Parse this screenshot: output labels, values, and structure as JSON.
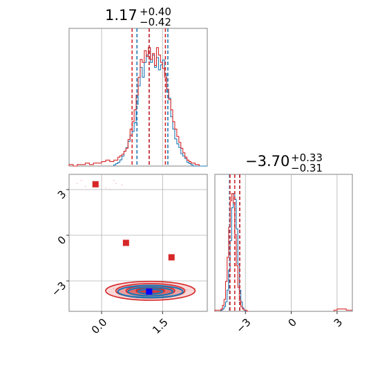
{
  "chart_data": [
    {
      "panel": "marginal-param1",
      "type": "histogram",
      "title": {
        "value": "1.17",
        "plus": "+0.40",
        "minus": "−0.42"
      },
      "xlim": [
        -0.8,
        2.6
      ],
      "grid": true,
      "series": [
        {
          "name": "",
          "color": "#1f77b4",
          "bins": [
            0.3,
            0.35,
            0.4,
            0.45,
            0.5,
            0.55,
            0.6,
            0.65,
            0.7,
            0.75,
            0.8,
            0.85,
            0.9,
            0.95,
            1.0,
            1.05,
            1.1,
            1.15,
            1.2,
            1.25,
            1.3,
            1.35,
            1.4,
            1.45,
            1.5,
            1.55,
            1.6,
            1.65,
            1.7,
            1.75,
            1.8,
            1.85,
            1.9,
            1.95,
            2.0,
            2.05,
            2.1,
            2.15,
            2.2,
            2.25,
            2.3,
            2.35,
            2.4,
            2.45,
            2.5,
            2.55,
            2.6
          ],
          "counts": [
            1,
            2,
            3,
            5,
            8,
            12,
            15,
            20,
            25,
            28,
            35,
            50,
            65,
            80,
            72,
            84,
            90,
            96,
            84,
            90,
            80,
            88,
            78,
            82,
            86,
            75,
            60,
            55,
            40,
            30,
            22,
            18,
            15,
            10,
            8,
            6,
            3,
            2,
            1,
            0,
            0,
            0,
            0,
            0,
            0,
            0
          ]
        },
        {
          "name": "",
          "color": "#d62728",
          "bins": [
            -0.8,
            -0.7,
            -0.6,
            -0.5,
            -0.4,
            -0.3,
            -0.2,
            -0.1,
            0.0,
            0.1,
            0.2,
            0.3,
            0.4,
            0.45,
            0.5,
            0.55,
            0.6,
            0.65,
            0.7,
            0.75,
            0.8,
            0.85,
            0.9,
            0.95,
            1.0,
            1.05,
            1.1,
            1.15,
            1.2,
            1.25,
            1.3,
            1.35,
            1.4,
            1.45,
            1.5,
            1.55,
            1.6,
            1.65,
            1.7,
            1.75,
            1.8,
            1.85,
            1.9,
            1.95,
            2.0,
            2.05,
            2.1,
            2.15,
            2.2,
            2.3,
            2.4
          ],
          "counts": [
            1,
            0,
            1,
            1,
            2,
            1,
            2,
            2,
            3,
            4,
            3,
            4,
            6,
            7,
            8,
            10,
            12,
            18,
            25,
            30,
            38,
            48,
            60,
            72,
            70,
            78,
            74,
            80,
            72,
            76,
            68,
            80,
            75,
            70,
            66,
            60,
            52,
            45,
            38,
            30,
            25,
            20,
            16,
            12,
            9,
            6,
            4,
            3,
            2,
            1
          ]
        }
      ],
      "quantiles": [
        {
          "color": "#1f77b4",
          "values": [
            0.87,
            1.17,
            1.63
          ]
        },
        {
          "color": "#d62728",
          "values": [
            0.75,
            1.17,
            1.57
          ]
        }
      ]
    },
    {
      "panel": "marginal-param2",
      "type": "histogram",
      "title": {
        "value": "−3.70",
        "plus": "+0.33",
        "minus": "−0.31"
      },
      "xlim": [
        -5.0,
        4.0
      ],
      "grid": true,
      "series": [
        {
          "name": "",
          "color": "#1f77b4",
          "bins": [
            -4.6,
            -4.5,
            -4.4,
            -4.3,
            -4.2,
            -4.1,
            -4.0,
            -3.9,
            -3.8,
            -3.7,
            -3.6,
            -3.5,
            -3.4,
            -3.3,
            -3.2,
            -3.1,
            -3.0,
            -2.9
          ],
          "counts": [
            1,
            2,
            4,
            8,
            18,
            35,
            60,
            88,
            100,
            95,
            70,
            40,
            18,
            8,
            3,
            1,
            0
          ]
        },
        {
          "name": "",
          "color": "#d62728",
          "bins": [
            -5.0,
            -4.7,
            -4.6,
            -4.5,
            -4.4,
            -4.3,
            -4.2,
            -4.1,
            -4.0,
            -3.9,
            -3.8,
            -3.7,
            -3.6,
            -3.5,
            -3.4,
            -3.3,
            -3.2,
            -3.1,
            -3.0,
            -2.9,
            -2.8
          ],
          "counts": [
            1,
            1,
            2,
            5,
            10,
            25,
            45,
            70,
            92,
            98,
            90,
            64,
            38,
            20,
            9,
            4,
            2,
            1,
            1,
            0
          ]
        },
        {
          "name": "",
          "color": "#d62728",
          "bins": [
            2.8,
            3.0,
            3.2,
            3.4,
            3.6,
            3.8,
            4.0
          ],
          "counts": [
            1,
            2,
            2,
            2,
            1,
            1
          ]
        }
      ],
      "quantiles": [
        {
          "color": "#1f77b4",
          "values": [
            -4.04,
            -3.7,
            -3.38
          ]
        },
        {
          "color": "#d62728",
          "values": [
            -4.01,
            -3.7,
            -3.37
          ]
        }
      ]
    },
    {
      "panel": "joint",
      "type": "scatter",
      "xlim": [
        -0.8,
        2.6
      ],
      "ylim": [
        -5.0,
        4.0
      ],
      "grid": true,
      "x_ticks": [
        "0.0",
        "1.5"
      ],
      "y_ticks": [
        "−3",
        "0",
        "3"
      ],
      "x_tick_values": [
        0.0,
        1.5
      ],
      "y_tick_values": [
        -3,
        0,
        3
      ],
      "series": [
        {
          "name": "",
          "color": "#d62728",
          "contours": [
            {
              "cx": 1.2,
              "cy": -3.65,
              "rx": 1.1,
              "ry": 0.62
            },
            {
              "cx": 1.2,
              "cy": -3.65,
              "rx": 0.85,
              "ry": 0.48
            },
            {
              "cx": 1.2,
              "cy": -3.65,
              "rx": 0.6,
              "ry": 0.34
            },
            {
              "cx": 1.2,
              "cy": -3.65,
              "rx": 0.35,
              "ry": 0.2
            }
          ],
          "outlier_markers": [
            {
              "x": -0.15,
              "y": 3.35
            },
            {
              "x": 0.6,
              "y": -0.5
            },
            {
              "x": 1.72,
              "y": -1.45
            }
          ]
        },
        {
          "name": "",
          "color": "#1f77b4",
          "contours": [
            {
              "cx": 1.2,
              "cy": -3.7,
              "rx": 0.8,
              "ry": 0.4
            },
            {
              "cx": 1.2,
              "cy": -3.7,
              "rx": 0.55,
              "ry": 0.28
            },
            {
              "cx": 1.2,
              "cy": -3.7,
              "rx": 0.3,
              "ry": 0.15
            }
          ],
          "truth_marker": {
            "x": 1.17,
            "y": -3.7,
            "color": "#0000ff"
          }
        }
      ],
      "x_ticks_param2": [
        "−3",
        "0",
        "3"
      ],
      "x_tick_values_param2": [
        -3,
        0,
        3
      ]
    }
  ]
}
